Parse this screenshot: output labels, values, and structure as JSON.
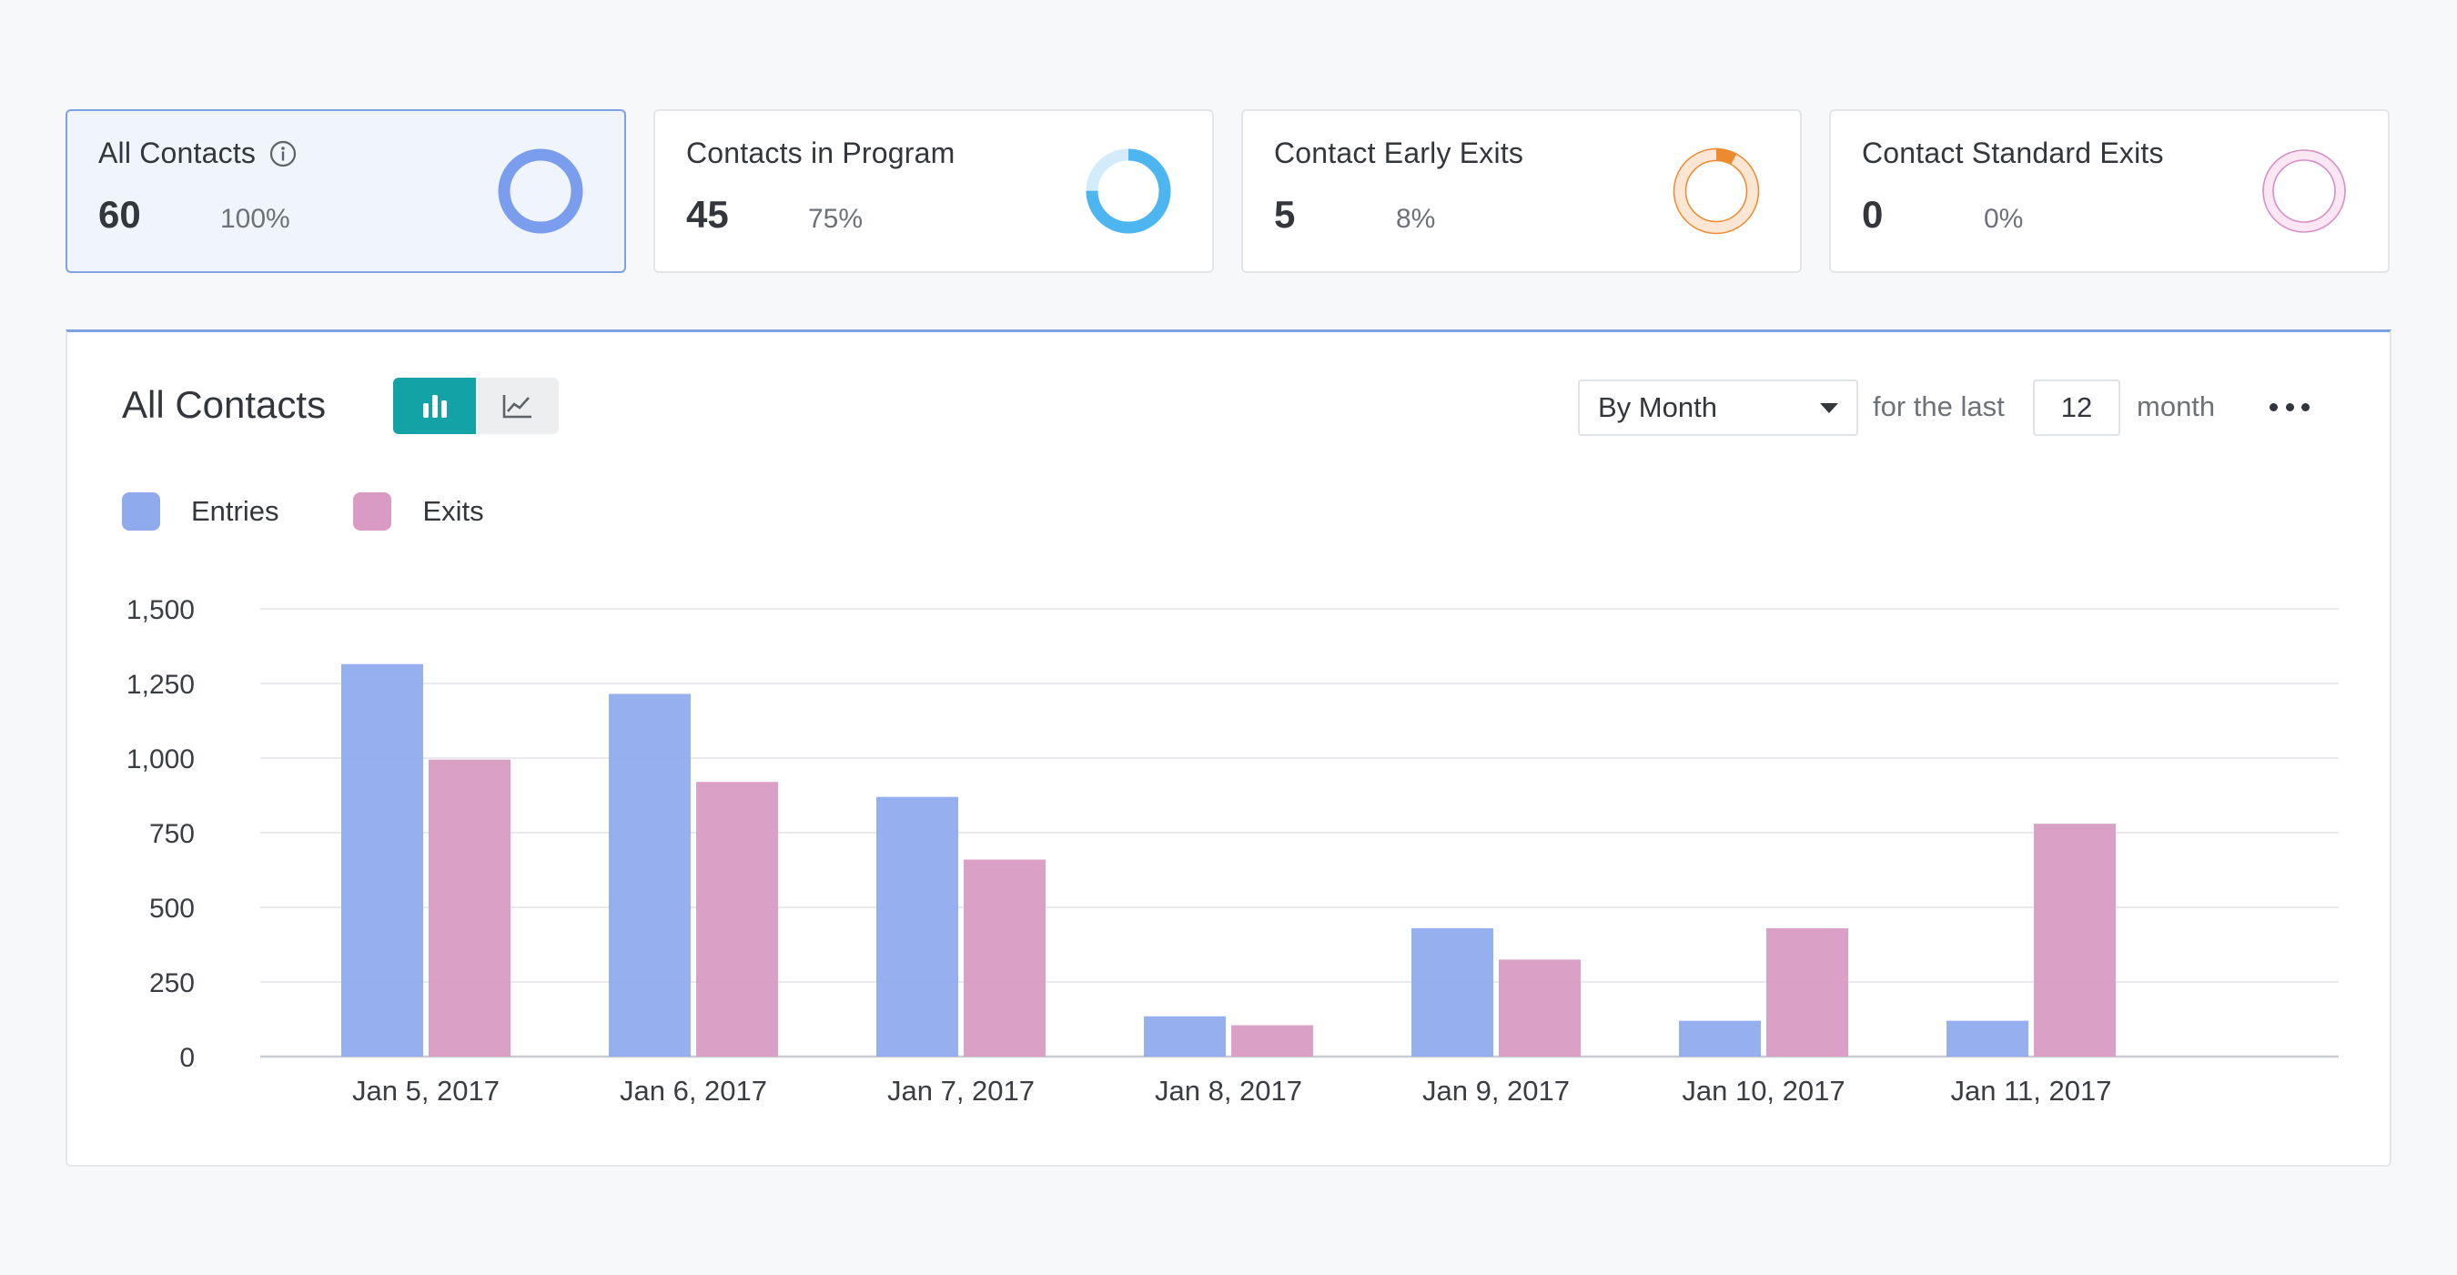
{
  "cards": [
    {
      "title": "All Contacts",
      "value": "60",
      "percent": "100%",
      "has_info": true,
      "color": "#7b9ded",
      "track": "#7b9ded",
      "fraction": 1.0,
      "active": true
    },
    {
      "title": "Contacts in Program",
      "value": "45",
      "percent": "75%",
      "has_info": false,
      "color": "#4db6f0",
      "track": "#d3ecfb",
      "fraction": 0.75,
      "active": false
    },
    {
      "title": "Contact Early Exits",
      "value": "5",
      "percent": "8%",
      "has_info": false,
      "color": "#ec8a2f",
      "track": "#fde6d3",
      "fraction": 0.08,
      "active": false
    },
    {
      "title": "Contact Standard Exits",
      "value": "0",
      "percent": "0%",
      "has_info": false,
      "color": "#d88fc5",
      "track": "#fbe7f3",
      "fraction": 0.0,
      "active": false
    }
  ],
  "panel": {
    "title": "All Contacts",
    "toggle": {
      "bar_icon": "bar-chart-icon",
      "line_icon": "line-chart-icon",
      "selected": "bar"
    },
    "period_select": "By Month",
    "for_the_last": "for the last",
    "count": "12",
    "unit": "month",
    "more_icon": "more-horizontal-icon"
  },
  "colors": {
    "entries": "#8fabee",
    "exits": "#d99bc3",
    "accent": "#13a3a6",
    "grid": "#e8eaed"
  },
  "chart_data": {
    "type": "bar",
    "categories": [
      "Jan 5, 2017",
      "Jan 6, 2017",
      "Jan 7, 2017",
      "Jan 8, 2017",
      "Jan 9, 2017",
      "Jan 10, 2017",
      "Jan 11, 2017"
    ],
    "series": [
      {
        "name": "Entries",
        "values": [
          1315,
          1215,
          870,
          135,
          430,
          120,
          120
        ]
      },
      {
        "name": "Exits",
        "values": [
          995,
          920,
          660,
          105,
          325,
          430,
          780
        ]
      }
    ],
    "ylim": [
      0,
      1500
    ],
    "yticks": [
      "0",
      "250",
      "500",
      "750",
      "1,000",
      "1,250",
      "1,500"
    ],
    "grid": true,
    "legend_position": "top-left"
  }
}
